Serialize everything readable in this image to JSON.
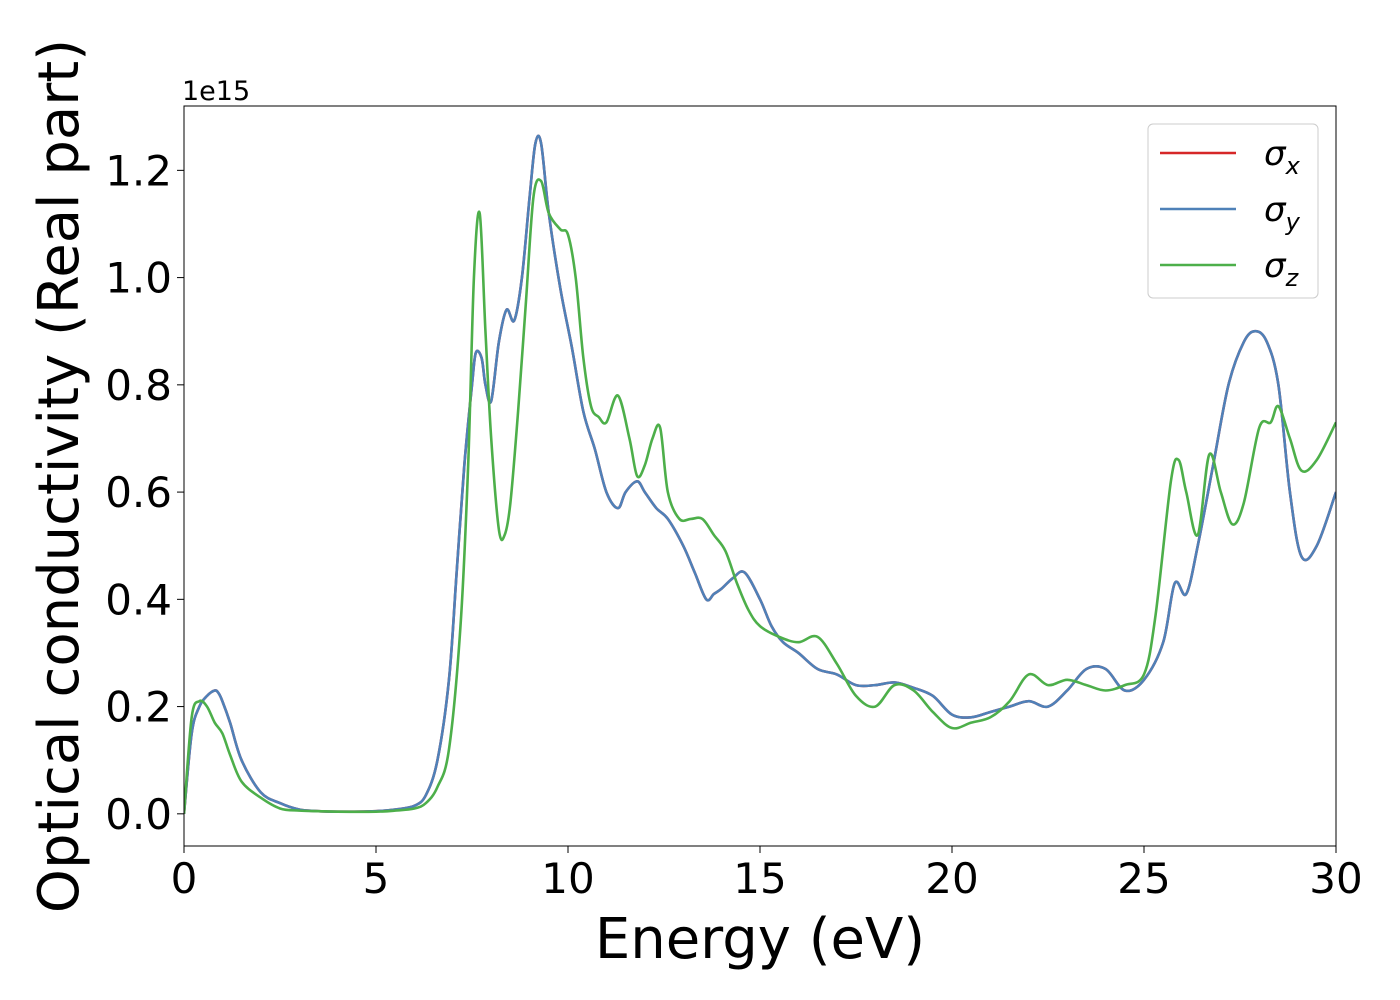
{
  "chart_data": {
    "type": "line",
    "title": "",
    "xlabel": "Energy (eV)",
    "ylabel": "Optical conductivity (Real part)",
    "offset_label": "1e15",
    "xlim": [
      0,
      30
    ],
    "ylim": [
      -0.06,
      1.32
    ],
    "xticks": [
      0,
      5,
      10,
      15,
      20,
      25,
      30
    ],
    "yticks": [
      0.0,
      0.2,
      0.4,
      0.6,
      0.8,
      1.0,
      1.2
    ],
    "xtick_labels": [
      "0",
      "5",
      "10",
      "15",
      "20",
      "25",
      "30"
    ],
    "ytick_labels": [
      "0.0",
      "0.2",
      "0.4",
      "0.6",
      "0.8",
      "1.0",
      "1.2"
    ],
    "legend": {
      "placement": "top-right"
    },
    "series": [
      {
        "name": "σx",
        "symbol": "σ",
        "sub": "x",
        "color": "#d62728",
        "x": [
          0,
          0.2,
          0.4,
          0.6,
          0.8,
          0.9,
          1.0,
          1.2,
          1.5,
          2,
          2.5,
          3,
          3.5,
          4,
          5,
          5.5,
          6,
          6.3,
          6.6,
          6.9,
          7.1,
          7.3,
          7.5,
          7.6,
          7.75,
          7.85,
          8.0,
          8.2,
          8.4,
          8.6,
          8.8,
          9.0,
          9.15,
          9.3,
          9.5,
          9.8,
          10.1,
          10.4,
          10.7,
          11.0,
          11.3,
          11.5,
          11.8,
          12.0,
          12.3,
          12.6,
          13.0,
          13.3,
          13.6,
          13.8,
          14.0,
          14.3,
          14.6,
          15.0,
          15.3,
          15.6,
          16.0,
          16.5,
          17.0,
          17.5,
          18.0,
          18.5,
          19.0,
          19.5,
          20.0,
          20.5,
          21.0,
          21.5,
          22.0,
          22.5,
          23.0,
          23.5,
          24.0,
          24.5,
          25.0,
          25.5,
          25.8,
          26.1,
          26.4,
          26.8,
          27.2,
          27.6,
          27.9,
          28.2,
          28.5,
          28.8,
          29.1,
          29.5,
          30.0
        ],
        "y": [
          0.0,
          0.15,
          0.2,
          0.22,
          0.23,
          0.225,
          0.21,
          0.17,
          0.1,
          0.04,
          0.02,
          0.008,
          0.005,
          0.004,
          0.005,
          0.008,
          0.015,
          0.035,
          0.1,
          0.25,
          0.45,
          0.65,
          0.8,
          0.86,
          0.85,
          0.8,
          0.77,
          0.88,
          0.94,
          0.92,
          1.0,
          1.15,
          1.25,
          1.25,
          1.12,
          0.98,
          0.87,
          0.75,
          0.68,
          0.6,
          0.57,
          0.6,
          0.62,
          0.6,
          0.57,
          0.55,
          0.5,
          0.45,
          0.4,
          0.41,
          0.42,
          0.44,
          0.45,
          0.4,
          0.35,
          0.32,
          0.3,
          0.27,
          0.26,
          0.24,
          0.24,
          0.245,
          0.235,
          0.22,
          0.185,
          0.18,
          0.19,
          0.2,
          0.21,
          0.2,
          0.23,
          0.27,
          0.27,
          0.23,
          0.25,
          0.32,
          0.43,
          0.41,
          0.5,
          0.65,
          0.8,
          0.88,
          0.9,
          0.88,
          0.8,
          0.6,
          0.48,
          0.5,
          0.6
        ]
      },
      {
        "name": "σy",
        "symbol": "σ",
        "sub": "y",
        "color": "#4f81b8",
        "x": [
          0,
          0.2,
          0.4,
          0.6,
          0.8,
          0.9,
          1.0,
          1.2,
          1.5,
          2,
          2.5,
          3,
          3.5,
          4,
          5,
          5.5,
          6,
          6.3,
          6.6,
          6.9,
          7.1,
          7.3,
          7.5,
          7.6,
          7.75,
          7.85,
          8.0,
          8.2,
          8.4,
          8.6,
          8.8,
          9.0,
          9.15,
          9.3,
          9.5,
          9.8,
          10.1,
          10.4,
          10.7,
          11.0,
          11.3,
          11.5,
          11.8,
          12.0,
          12.3,
          12.6,
          13.0,
          13.3,
          13.6,
          13.8,
          14.0,
          14.3,
          14.6,
          15.0,
          15.3,
          15.6,
          16.0,
          16.5,
          17.0,
          17.5,
          18.0,
          18.5,
          19.0,
          19.5,
          20.0,
          20.5,
          21.0,
          21.5,
          22.0,
          22.5,
          23.0,
          23.5,
          24.0,
          24.5,
          25.0,
          25.5,
          25.8,
          26.1,
          26.4,
          26.8,
          27.2,
          27.6,
          27.9,
          28.2,
          28.5,
          28.8,
          29.1,
          29.5,
          30.0
        ],
        "y": [
          0.0,
          0.15,
          0.2,
          0.22,
          0.23,
          0.225,
          0.21,
          0.17,
          0.1,
          0.04,
          0.02,
          0.008,
          0.005,
          0.004,
          0.005,
          0.008,
          0.015,
          0.035,
          0.1,
          0.25,
          0.45,
          0.65,
          0.8,
          0.86,
          0.85,
          0.8,
          0.77,
          0.88,
          0.94,
          0.92,
          1.0,
          1.15,
          1.25,
          1.25,
          1.12,
          0.98,
          0.87,
          0.75,
          0.68,
          0.6,
          0.57,
          0.6,
          0.62,
          0.6,
          0.57,
          0.55,
          0.5,
          0.45,
          0.4,
          0.41,
          0.42,
          0.44,
          0.45,
          0.4,
          0.35,
          0.32,
          0.3,
          0.27,
          0.26,
          0.24,
          0.24,
          0.245,
          0.235,
          0.22,
          0.185,
          0.18,
          0.19,
          0.2,
          0.21,
          0.2,
          0.23,
          0.27,
          0.27,
          0.23,
          0.25,
          0.32,
          0.43,
          0.41,
          0.5,
          0.65,
          0.8,
          0.88,
          0.9,
          0.88,
          0.8,
          0.6,
          0.48,
          0.5,
          0.6
        ]
      },
      {
        "name": "σz",
        "symbol": "σ",
        "sub": "z",
        "color": "#4daf4a",
        "x": [
          0,
          0.2,
          0.4,
          0.6,
          0.8,
          1.0,
          1.2,
          1.5,
          2,
          2.5,
          3,
          3.5,
          4,
          5,
          5.5,
          6,
          6.3,
          6.6,
          6.9,
          7.2,
          7.4,
          7.55,
          7.7,
          7.85,
          8.0,
          8.2,
          8.35,
          8.5,
          8.7,
          8.9,
          9.1,
          9.3,
          9.5,
          9.8,
          10.0,
          10.2,
          10.4,
          10.6,
          10.8,
          11.0,
          11.3,
          11.6,
          11.8,
          12.0,
          12.2,
          12.4,
          12.6,
          12.9,
          13.2,
          13.5,
          13.8,
          14.1,
          14.4,
          14.7,
          15.0,
          15.5,
          16.0,
          16.5,
          17.0,
          17.5,
          18.0,
          18.5,
          19.0,
          19.5,
          20.0,
          20.5,
          21.0,
          21.5,
          22.0,
          22.5,
          23.0,
          23.5,
          24.0,
          24.5,
          25.0,
          25.3,
          25.7,
          25.9,
          26.1,
          26.4,
          26.7,
          27.0,
          27.3,
          27.6,
          28.0,
          28.3,
          28.5,
          28.8,
          29.1,
          29.5,
          30.0
        ],
        "y": [
          0.0,
          0.18,
          0.21,
          0.2,
          0.17,
          0.15,
          0.11,
          0.06,
          0.03,
          0.01,
          0.006,
          0.005,
          0.004,
          0.004,
          0.006,
          0.01,
          0.02,
          0.05,
          0.12,
          0.35,
          0.65,
          1.0,
          1.12,
          0.9,
          0.7,
          0.53,
          0.52,
          0.58,
          0.75,
          0.95,
          1.15,
          1.18,
          1.12,
          1.09,
          1.08,
          1.0,
          0.85,
          0.76,
          0.74,
          0.73,
          0.78,
          0.7,
          0.63,
          0.65,
          0.7,
          0.72,
          0.6,
          0.55,
          0.55,
          0.55,
          0.52,
          0.49,
          0.43,
          0.38,
          0.35,
          0.33,
          0.32,
          0.33,
          0.28,
          0.22,
          0.2,
          0.24,
          0.23,
          0.19,
          0.16,
          0.17,
          0.18,
          0.21,
          0.26,
          0.24,
          0.25,
          0.24,
          0.23,
          0.24,
          0.26,
          0.37,
          0.62,
          0.66,
          0.6,
          0.52,
          0.67,
          0.6,
          0.54,
          0.58,
          0.72,
          0.73,
          0.76,
          0.7,
          0.64,
          0.66,
          0.73
        ]
      }
    ]
  }
}
